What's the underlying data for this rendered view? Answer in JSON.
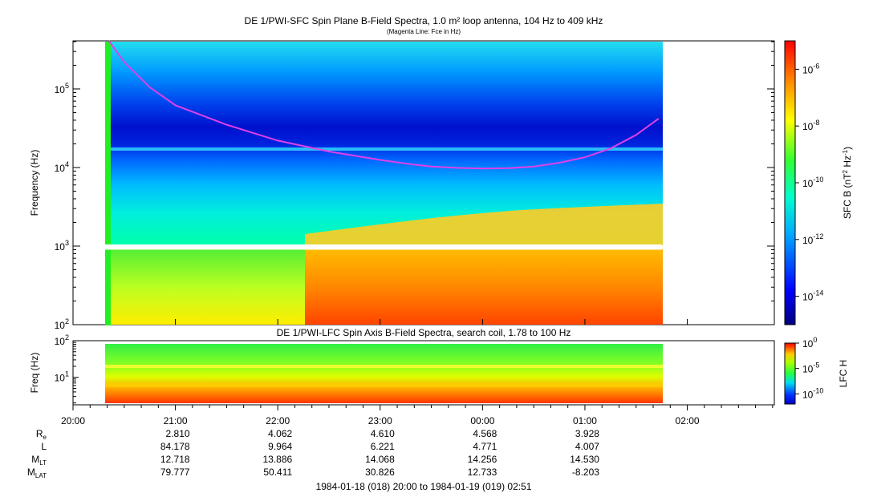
{
  "chart_data": [
    {
      "type": "heatmap",
      "title": "DE 1/PWI-SFC  Spin Plane B-Field Spectra, 1.0 m² loop antenna, 104 Hz to 409 kHz",
      "subtitle": "(Magenta Line: Fce in Hz)",
      "ylabel": "Frequency (Hz)",
      "yscale": "log",
      "ylim": [
        100,
        409000
      ],
      "yticks": [
        "10",
        "10",
        "10",
        "10"
      ],
      "ytick_exponents": [
        "2",
        "3",
        "4",
        "5"
      ],
      "data_time_range_hours": [
        20.33,
        25.75
      ],
      "data_gap_hz": [
        900,
        1050
      ],
      "colorbar": {
        "label": "SFC B (nT",
        "label_sup1": "2",
        "label_mid": " Hz",
        "label_sup2": "-1",
        "label_end": ")",
        "ticks": [
          "10",
          "10",
          "10",
          "10",
          "10"
        ],
        "tick_exponents": [
          "-6",
          "-8",
          "-10",
          "-12",
          "-14"
        ],
        "tick_values": [
          -6,
          -8,
          -10,
          -12,
          -14
        ],
        "range_log": [
          -15,
          -5
        ]
      },
      "fce_line": {
        "name": "Fce",
        "color": "#e040e8",
        "x_hours": [
          20.35,
          20.5,
          20.75,
          21.0,
          21.5,
          22.0,
          22.5,
          23.0,
          23.3,
          23.5,
          23.75,
          24.0,
          24.25,
          24.5,
          24.75,
          25.0,
          25.25,
          25.5,
          25.72
        ],
        "y_hz": [
          409000,
          220000,
          105000,
          62000,
          35000,
          22000,
          16000,
          12500,
          11000,
          10300,
          9900,
          9700,
          9800,
          10300,
          11500,
          13500,
          17500,
          26000,
          42000
        ]
      }
    },
    {
      "type": "heatmap",
      "title": "DE 1/PWI-LFC  Spin Axis B-Field Spectra, search coil, 1.78 to 100 Hz",
      "ylabel": "Freq (Hz)",
      "yscale": "log",
      "ylim": [
        1.78,
        100
      ],
      "yticks": [
        "10",
        "10"
      ],
      "ytick_exponents": [
        "2",
        "1"
      ],
      "colorbar": {
        "label": "LFC H",
        "ticks": [
          "10",
          "10",
          "10"
        ],
        "tick_exponents": [
          "0",
          "-5",
          "-10"
        ],
        "tick_values": [
          0,
          -5,
          -10
        ],
        "range_log": [
          -12,
          0
        ]
      }
    }
  ],
  "time_axis": {
    "range_hours": [
      20.0,
      26.85
    ],
    "ticks": [
      {
        "label": "20:00",
        "hour": 20
      },
      {
        "label": "21:00",
        "hour": 21
      },
      {
        "label": "22:00",
        "hour": 22
      },
      {
        "label": "23:00",
        "hour": 23
      },
      {
        "label": "00:00",
        "hour": 24
      },
      {
        "label": "01:00",
        "hour": 25
      },
      {
        "label": "02:00",
        "hour": 26
      }
    ]
  },
  "ephemeris": {
    "labels": [
      "R",
      "L",
      "M",
      "M"
    ],
    "label_subs": [
      "e",
      "",
      "LT",
      "LAT"
    ],
    "rows": [
      [
        "2.810",
        "4.062",
        "4.610",
        "4.568",
        "3.928"
      ],
      [
        "84.178",
        "9.964",
        "6.221",
        "4.771",
        "4.007"
      ],
      [
        "12.718",
        "13.886",
        "14.068",
        "14.256",
        "14.530"
      ],
      [
        "79.777",
        "50.411",
        "30.826",
        "12.733",
        "-8.203"
      ]
    ]
  },
  "footer": "1984-01-18 (018) 20:00 to 1984-01-19 (019) 02:51"
}
